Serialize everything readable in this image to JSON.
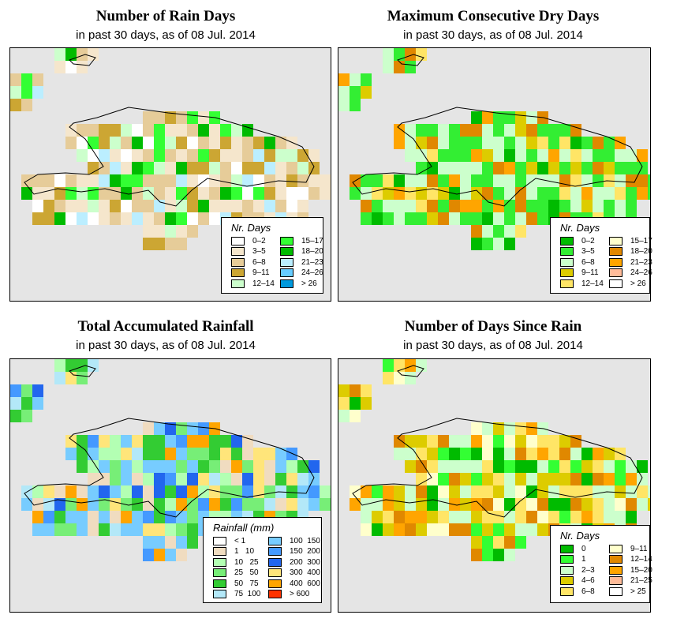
{
  "panels": [
    {
      "title": "Number of Rain Days",
      "subtitle": "in past 30 days, as of  08 Jul. 2014",
      "legend_title": "Nr. Days",
      "legend": [
        [
          "0–2",
          "#ffffff"
        ],
        [
          "3–5",
          "#f5e6cc"
        ],
        [
          "6–8",
          "#e6cc99"
        ],
        [
          "9–11",
          "#cca633"
        ],
        [
          "12–14",
          "#ccffcc"
        ],
        [
          "15–17",
          "#33ff33"
        ],
        [
          "18–20",
          "#00bb00"
        ],
        [
          "21–23",
          "#bbeeff"
        ],
        [
          "24–26",
          "#66ccff"
        ],
        [
          "> 26",
          "#0099dd"
        ]
      ]
    },
    {
      "title": "Maximum Consecutive Dry Days",
      "subtitle": "in past 30 days, as of  08 Jul. 2014",
      "legend_title": "Nr. Days",
      "legend": [
        [
          "0–2",
          "#00bb00"
        ],
        [
          "3–5",
          "#33ee33"
        ],
        [
          "6–8",
          "#ccffcc"
        ],
        [
          "9–11",
          "#ddcc00"
        ],
        [
          "12–14",
          "#ffe566"
        ],
        [
          "15–17",
          "#ffffcc"
        ],
        [
          "18–20",
          "#e08800"
        ],
        [
          "21–23",
          "#ffa500"
        ],
        [
          "24–26",
          "#ffbb99"
        ],
        [
          "> 26",
          "#ffffff"
        ]
      ]
    },
    {
      "title": "Total Accumulated Rainfall",
      "subtitle": "in past 30 days, as of  08 Jul. 2014",
      "legend_title": "Rainfall (mm)",
      "legend": [
        [
          "< 1",
          "#ffffff"
        ],
        [
          "1   10",
          "#f0dcc0"
        ],
        [
          "10   25",
          "#b3ffb3"
        ],
        [
          "25   50",
          "#77ee77"
        ],
        [
          "50   75",
          "#33cc33"
        ],
        [
          "75  100",
          "#b3e8f8"
        ],
        [
          "100  150",
          "#77ccff"
        ],
        [
          "150  200",
          "#4499ff"
        ],
        [
          "200  300",
          "#2266ee"
        ],
        [
          "300  400",
          "#ffe57a"
        ],
        [
          "400  600",
          "#ffa500"
        ],
        [
          "> 600",
          "#ff3300"
        ]
      ]
    },
    {
      "title": "Number of Days Since Rain",
      "subtitle": "in past 30 days, as of  08 Jul. 2014",
      "legend_title": "Nr. Days",
      "legend": [
        [
          "0",
          "#00bb00"
        ],
        [
          "1",
          "#33ff33"
        ],
        [
          "2–3",
          "#ccffcc"
        ],
        [
          "4–6",
          "#ddcc00"
        ],
        [
          "6–8",
          "#ffe566"
        ],
        [
          "9–11",
          "#ffffcc"
        ],
        [
          "12–14",
          "#e08800"
        ],
        [
          "15–20",
          "#ffa500"
        ],
        [
          "21–25",
          "#ffbb99"
        ],
        [
          "> 25",
          "#ffffff"
        ]
      ]
    }
  ]
}
